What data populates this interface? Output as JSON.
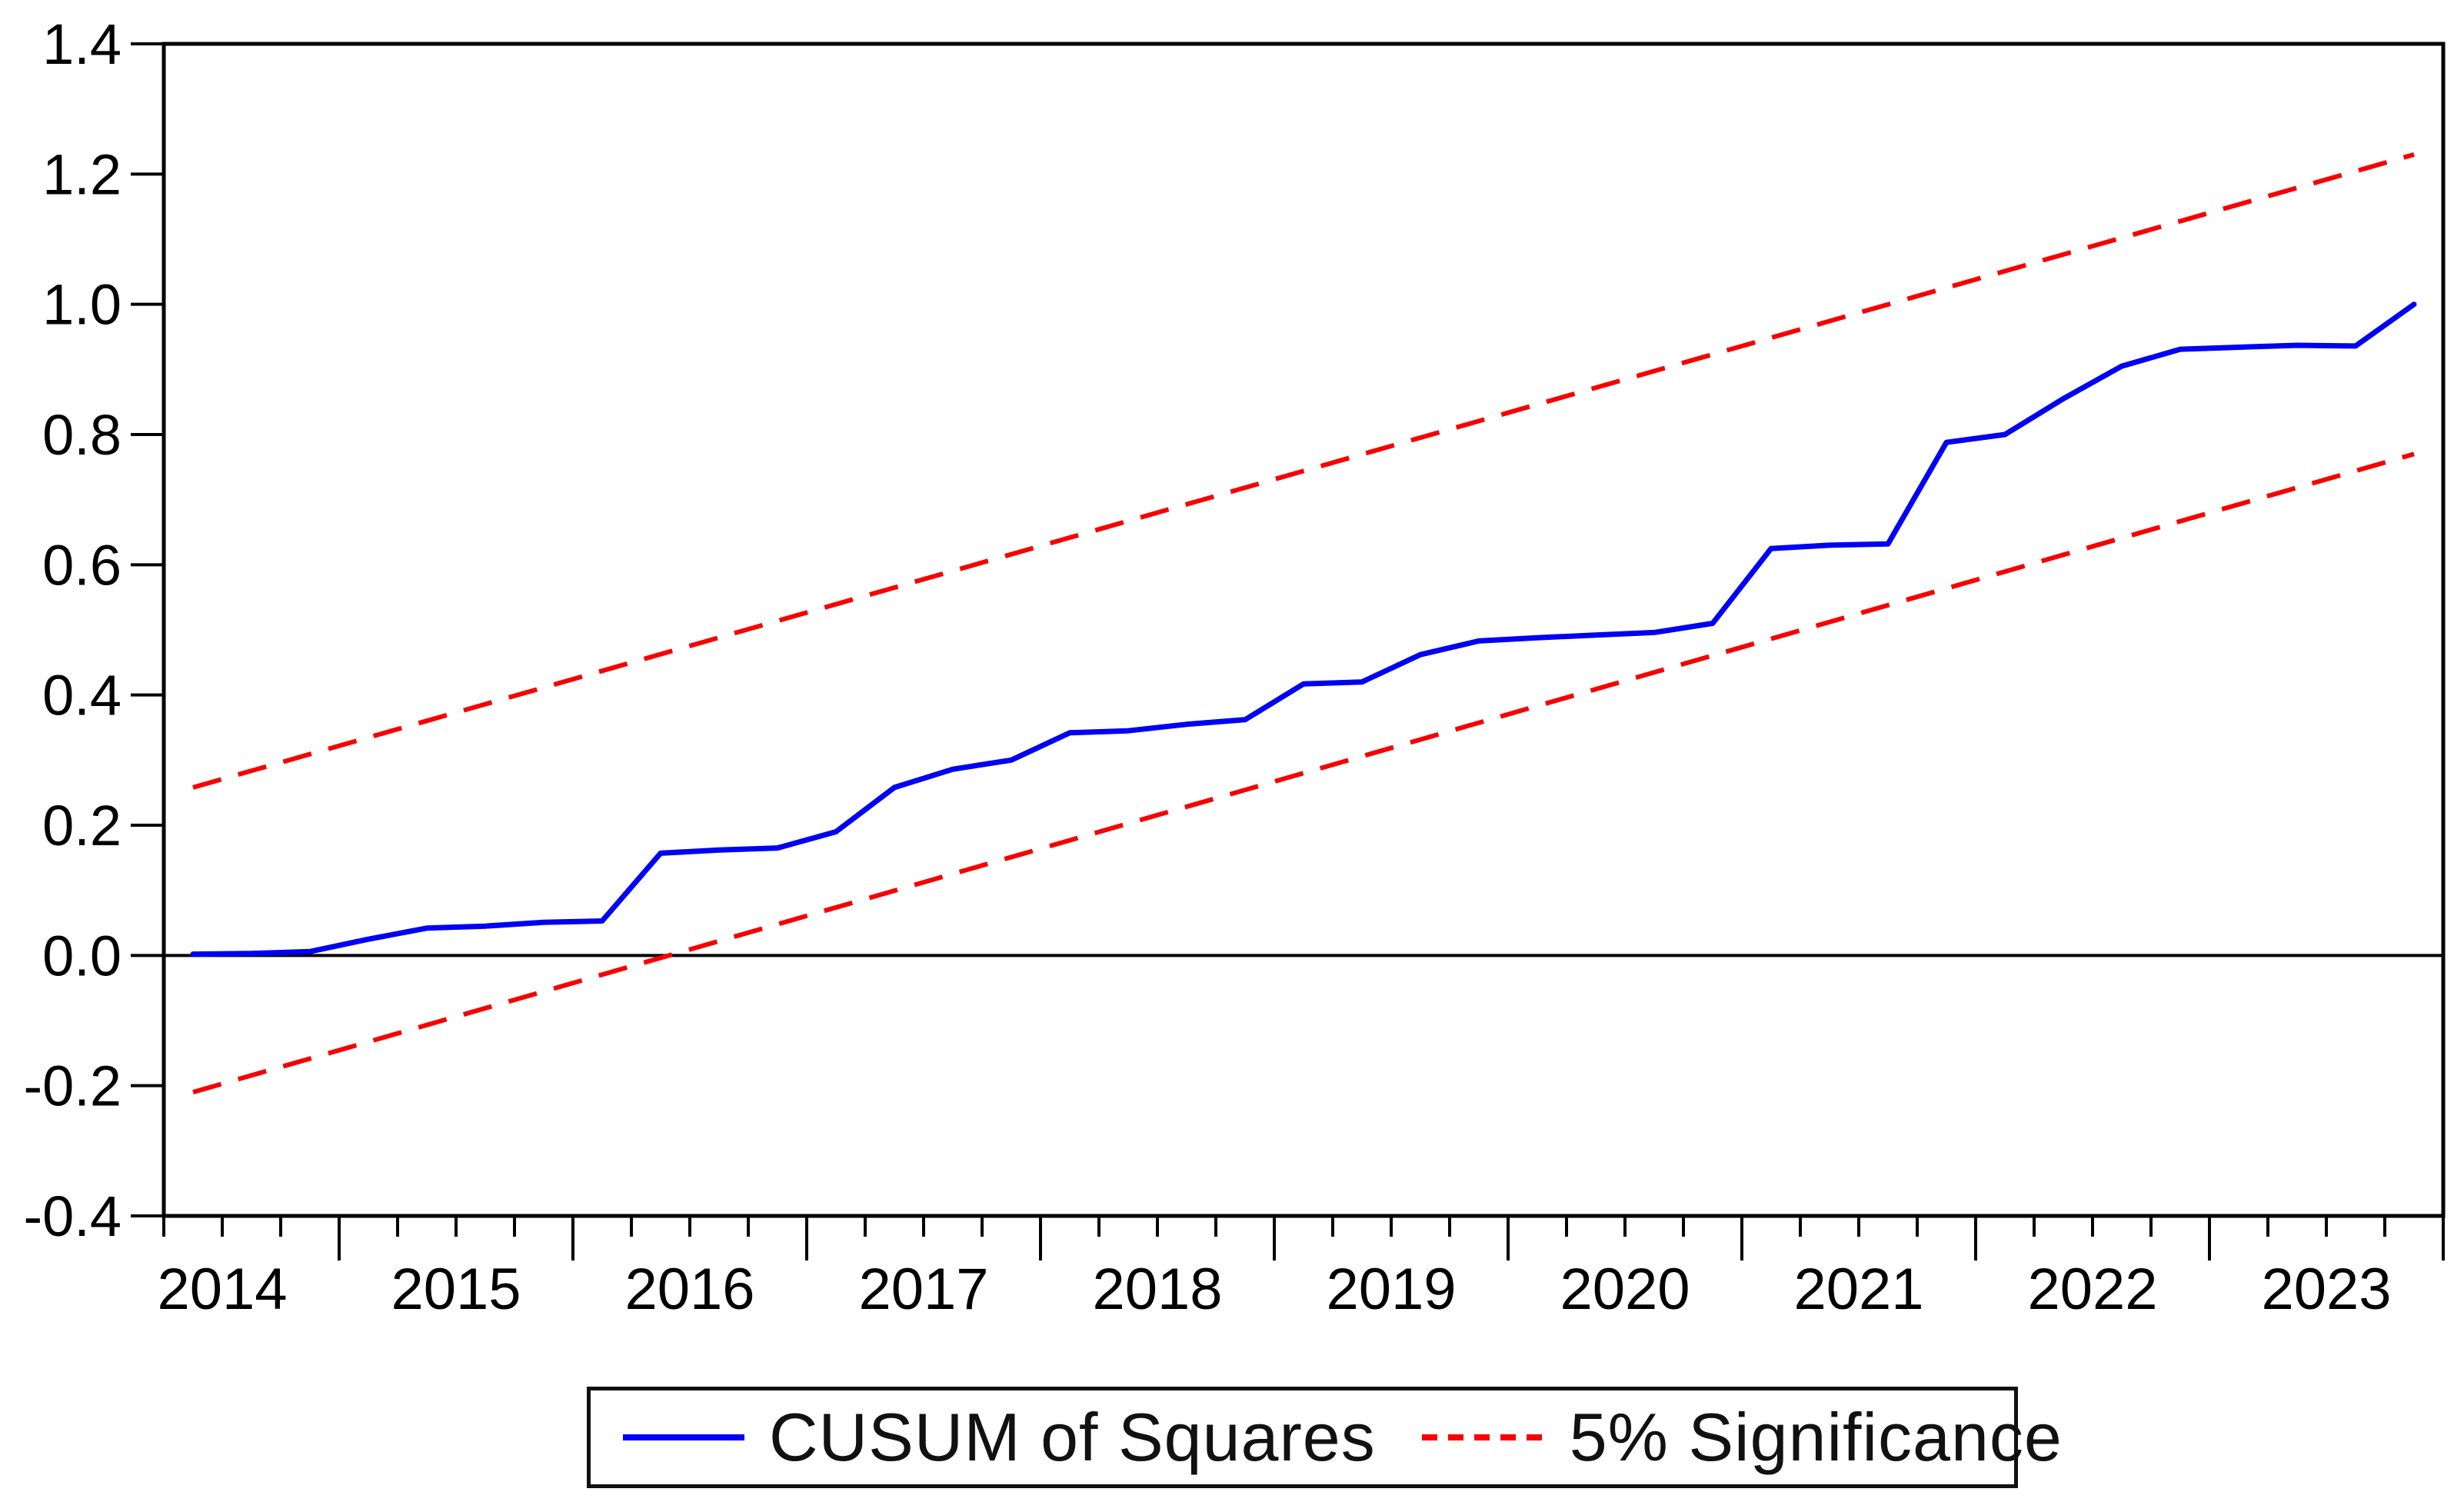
{
  "chart_data": {
    "type": "line",
    "title": "",
    "xlabel": "",
    "ylabel": "",
    "x_frequency": "quarterly",
    "categories": [
      "2014Q2",
      "2014Q3",
      "2014Q4",
      "2015Q1",
      "2015Q2",
      "2015Q3",
      "2015Q4",
      "2016Q1",
      "2016Q2",
      "2016Q3",
      "2016Q4",
      "2017Q1",
      "2017Q2",
      "2017Q3",
      "2017Q4",
      "2018Q1",
      "2018Q2",
      "2018Q3",
      "2018Q4",
      "2019Q1",
      "2019Q2",
      "2019Q3",
      "2019Q4",
      "2020Q1",
      "2020Q2",
      "2020Q3",
      "2020Q4",
      "2021Q1",
      "2021Q2",
      "2021Q3",
      "2021Q4",
      "2022Q1",
      "2022Q2",
      "2022Q3",
      "2022Q4",
      "2023Q1",
      "2023Q2",
      "2023Q3",
      "2023Q4"
    ],
    "series": [
      {
        "name": "CUSUM of Squares",
        "type": "line",
        "style": "solid",
        "color": "#0000f5",
        "values": [
          0.002,
          0.003,
          0.006,
          0.025,
          0.042,
          0.045,
          0.051,
          0.053,
          0.157,
          0.162,
          0.165,
          0.19,
          0.258,
          0.286,
          0.3,
          0.342,
          0.345,
          0.355,
          0.362,
          0.417,
          0.42,
          0.462,
          0.483,
          0.488,
          0.492,
          0.496,
          0.51,
          0.625,
          0.63,
          0.632,
          0.788,
          0.8,
          0.855,
          0.905,
          0.931,
          0.934,
          0.937,
          0.936,
          1.0
        ]
      },
      {
        "name": "5% Significance",
        "type": "band-lines",
        "style": "dashed",
        "color": "#f80000",
        "lines": [
          {
            "name": "lower-5pct-band",
            "start": -0.21,
            "end": 0.77
          },
          {
            "name": "upper-5pct-band",
            "start": 0.258,
            "end": 1.23
          }
        ]
      }
    ],
    "ylim": [
      -0.4,
      1.4
    ],
    "ytick_step": 0.2,
    "ytick_labels": [
      "1.4",
      "1.2",
      "1.0",
      "0.8",
      "0.6",
      "0.4",
      "0.2",
      "0.0",
      "-0.2",
      "-0.4"
    ],
    "xtick_years": [
      "2014",
      "2015",
      "2016",
      "2017",
      "2018",
      "2019",
      "2020",
      "2021",
      "2022",
      "2023"
    ],
    "minor_ticks_per_year": 4,
    "grid": false,
    "zero_line": 0.0,
    "legend_position": "bottom-center"
  },
  "legend": {
    "items": [
      {
        "label": "CUSUM of Squares",
        "swatch": "solid-blue-line"
      },
      {
        "label": "5% Significance",
        "swatch": "dashed-red-line"
      }
    ]
  },
  "colors": {
    "cusum_line": "#0000f5",
    "significance_line": "#f80000",
    "axis": "#000000",
    "background": "#ffffff",
    "legend_border": "#111111"
  }
}
